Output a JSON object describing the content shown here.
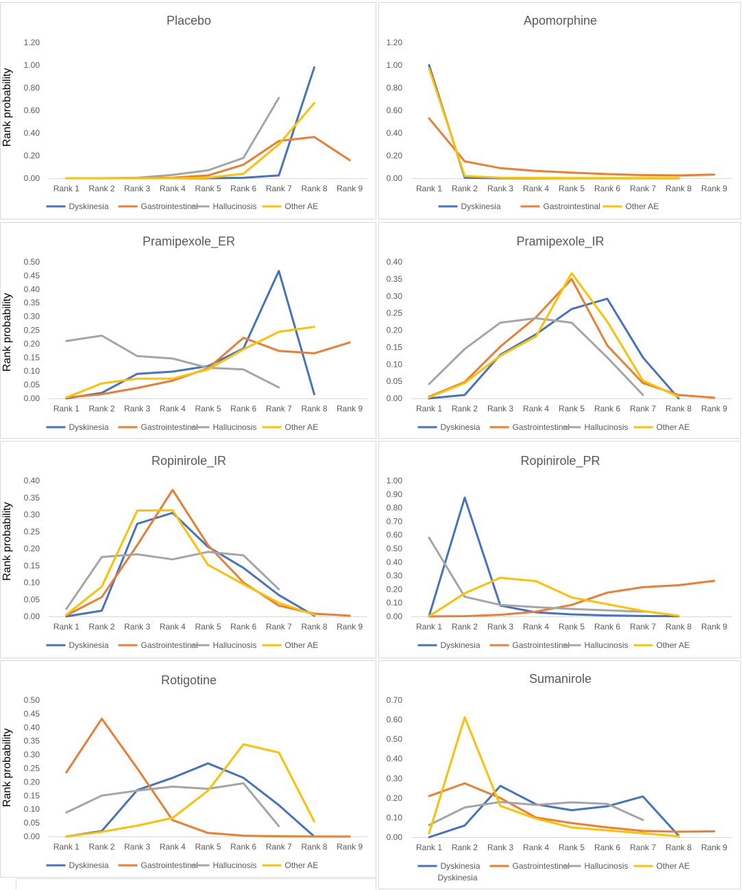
{
  "y_axis_label": "Rank probability",
  "legend_colors": {
    "Dyskinesia": "#4472C4",
    "Gastrointestinal": "#ED7D31",
    "Hallucinosis": "#A5A5A5",
    "Other AE": "#FFC000"
  },
  "chart_data": [
    {
      "type": "line",
      "title": "Placebo",
      "categories": [
        "Rank 1",
        "Rank 2",
        "Rank 3",
        "Rank 4",
        "Rank 5",
        "Rank 6",
        "Rank 7",
        "Rank 8",
        "Rank 9"
      ],
      "ylim": [
        0,
        1.2
      ],
      "yticks": [
        "0.00",
        "0.20",
        "0.40",
        "0.60",
        "0.80",
        "1.00",
        "1.20"
      ],
      "legend": [
        "Dyskinesia",
        "Gastrointestinal",
        "Hallucinosis",
        "Other AE"
      ],
      "series": [
        {
          "name": "Dyskinesia",
          "values": [
            0,
            0,
            0,
            0,
            0,
            0.005,
            0.025,
            0.98,
            null
          ]
        },
        {
          "name": "Gastrointestinal",
          "values": [
            0,
            0,
            0,
            0.005,
            0.025,
            0.12,
            0.33,
            0.365,
            0.16
          ]
        },
        {
          "name": "Hallucinosis",
          "values": [
            0,
            0,
            0.005,
            0.03,
            0.07,
            0.18,
            0.71,
            null,
            null
          ]
        },
        {
          "name": "Other AE",
          "values": [
            0,
            0,
            0,
            0,
            0.005,
            0.04,
            0.3,
            0.665,
            null
          ]
        }
      ]
    },
    {
      "type": "line",
      "title": "Apomorphine",
      "categories": [
        "Rank 1",
        "Rank 2",
        "Rank 3",
        "Rank 4",
        "Rank 5",
        "Rank 6",
        "Rank 7",
        "Rank 8",
        "Rank 9"
      ],
      "ylim": [
        0,
        1.2
      ],
      "yticks": [
        "0.00",
        "0.20",
        "0.40",
        "0.60",
        "0.80",
        "1.00",
        "1.20"
      ],
      "legend": [
        "Dyskinesia",
        "Gastrointestinal",
        "Other AE"
      ],
      "series": [
        {
          "name": "Dyskinesia",
          "values": [
            1.0,
            0.005,
            0,
            0,
            0,
            0,
            0,
            0,
            null
          ]
        },
        {
          "name": "Gastrointestinal",
          "values": [
            0.53,
            0.15,
            0.09,
            0.065,
            0.05,
            0.037,
            0.028,
            0.025,
            0.033
          ]
        },
        {
          "name": "Other AE",
          "values": [
            0.97,
            0.02,
            0.005,
            0.003,
            0.002,
            0.002,
            0.002,
            0.002,
            null
          ]
        }
      ]
    },
    {
      "type": "line",
      "title": "Pramipexole_ER",
      "categories": [
        "Rank 1",
        "Rank 2",
        "Rank 3",
        "Rank 4",
        "Rank 5",
        "Rank 6",
        "Rank 7",
        "Rank 8",
        "Rank 9"
      ],
      "ylim": [
        0,
        0.5
      ],
      "yticks": [
        "0.00",
        "0.05",
        "0.10",
        "0.15",
        "0.20",
        "0.25",
        "0.30",
        "0.35",
        "0.40",
        "0.45",
        "0.50"
      ],
      "legend": [
        "Dyskinesia",
        "Gastrointestinal",
        "Hallucinosis",
        "Other AE"
      ],
      "series": [
        {
          "name": "Dyskinesia",
          "values": [
            0,
            0.02,
            0.09,
            0.098,
            0.118,
            0.183,
            0.467,
            0.015,
            null
          ]
        },
        {
          "name": "Gastrointestinal",
          "values": [
            0.003,
            0.015,
            0.038,
            0.065,
            0.11,
            0.222,
            0.174,
            0.165,
            0.205
          ]
        },
        {
          "name": "Hallucinosis",
          "values": [
            0.21,
            0.23,
            0.155,
            0.146,
            0.112,
            0.106,
            0.04,
            null,
            null
          ]
        },
        {
          "name": "Other AE",
          "values": [
            0.003,
            0.055,
            0.072,
            0.072,
            0.106,
            0.18,
            0.244,
            0.262,
            null
          ]
        }
      ]
    },
    {
      "type": "line",
      "title": "Pramipexole_IR",
      "categories": [
        "Rank 1",
        "Rank 2",
        "Rank 3",
        "Rank 4",
        "Rank 5",
        "Rank 6",
        "Rank 7",
        "Rank 8",
        "Rank 9"
      ],
      "ylim": [
        0,
        0.4
      ],
      "yticks": [
        "0.00",
        "0.05",
        "0.10",
        "0.15",
        "0.20",
        "0.25",
        "0.30",
        "0.35",
        "0.40"
      ],
      "legend": [
        "Dyskinesia",
        "Gastrointestinal",
        "Hallucinosis",
        "Other AE"
      ],
      "series": [
        {
          "name": "Dyskinesia",
          "values": [
            0,
            0.01,
            0.128,
            0.188,
            0.262,
            0.292,
            0.12,
            0,
            null
          ]
        },
        {
          "name": "Gastrointestinal",
          "values": [
            0.005,
            0.048,
            0.152,
            0.238,
            0.35,
            0.155,
            0.045,
            0.01,
            0.002
          ]
        },
        {
          "name": "Hallucinosis",
          "values": [
            0.042,
            0.145,
            0.222,
            0.235,
            0.222,
            0.12,
            0.01,
            null,
            null
          ]
        },
        {
          "name": "Other AE",
          "values": [
            0.003,
            0.045,
            0.125,
            0.182,
            0.367,
            0.225,
            0.052,
            0.005,
            null
          ]
        }
      ]
    },
    {
      "type": "line",
      "title": "Ropinirole_IR",
      "categories": [
        "Rank 1",
        "Rank 2",
        "Rank 3",
        "Rank 4",
        "Rank 5",
        "Rank 6",
        "Rank 7",
        "Rank 8",
        "Rank 9"
      ],
      "ylim": [
        0,
        0.4
      ],
      "yticks": [
        "0.00",
        "0.05",
        "0.10",
        "0.15",
        "0.20",
        "0.25",
        "0.30",
        "0.35",
        "0.40"
      ],
      "legend": [
        "Dyskinesia",
        "Gastrointestinal",
        "Hallucinosis",
        "Other AE"
      ],
      "series": [
        {
          "name": "Dyskinesia",
          "values": [
            0,
            0.017,
            0.273,
            0.305,
            0.205,
            0.143,
            0.063,
            0.002,
            null
          ]
        },
        {
          "name": "Gastrointestinal",
          "values": [
            0.003,
            0.057,
            0.21,
            0.373,
            0.21,
            0.1,
            0.032,
            0.008,
            0.002
          ]
        },
        {
          "name": "Hallucinosis",
          "values": [
            0.022,
            0.175,
            0.183,
            0.168,
            0.19,
            0.18,
            0.08,
            null,
            null
          ]
        },
        {
          "name": "Other AE",
          "values": [
            0.005,
            0.088,
            0.312,
            0.313,
            0.152,
            0.095,
            0.04,
            0.005,
            null
          ]
        }
      ]
    },
    {
      "type": "line",
      "title": "Ropinirole_PR",
      "categories": [
        "Rank 1",
        "Rank 2",
        "Rank 3",
        "Rank 4",
        "Rank 5",
        "Rank 6",
        "Rank 7",
        "Rank 8",
        "Rank 9"
      ],
      "ylim": [
        0,
        1.0
      ],
      "yticks": [
        "0.00",
        "0.10",
        "0.20",
        "0.30",
        "0.40",
        "0.50",
        "0.60",
        "0.70",
        "0.80",
        "0.90",
        "1.00"
      ],
      "legend": [
        "Dyskinesia",
        "Gastrointestinal",
        "Hallucinosis",
        "Other AE"
      ],
      "series": [
        {
          "name": "Dyskinesia",
          "values": [
            0.003,
            0.875,
            0.08,
            0.03,
            0.015,
            0.007,
            0.003,
            0.001,
            null
          ]
        },
        {
          "name": "Gastrointestinal",
          "values": [
            0,
            0.002,
            0.012,
            0.035,
            0.085,
            0.175,
            0.215,
            0.23,
            0.262
          ]
        },
        {
          "name": "Hallucinosis",
          "values": [
            0.58,
            0.145,
            0.085,
            0.068,
            0.055,
            0.045,
            0.035,
            null,
            null
          ]
        },
        {
          "name": "Other AE",
          "values": [
            0.002,
            0.17,
            0.285,
            0.26,
            0.14,
            0.09,
            0.04,
            0.005,
            null
          ]
        }
      ]
    },
    {
      "type": "line",
      "title": "Rotigotine",
      "categories": [
        "Rank 1",
        "Rank 2",
        "Rank 3",
        "Rank 4",
        "Rank 5",
        "Rank 6",
        "Rank 7",
        "Rank 8",
        "Rank 9"
      ],
      "ylim": [
        0,
        0.5
      ],
      "yticks": [
        "0.00",
        "0.05",
        "0.10",
        "0.15",
        "0.20",
        "0.25",
        "0.30",
        "0.35",
        "0.40",
        "0.45",
        "0.50"
      ],
      "legend": [
        "Dyskinesia",
        "Gastrointestinal",
        "Hallucinosis",
        "Other AE"
      ],
      "series": [
        {
          "name": "Dyskinesia",
          "values": [
            0,
            0.02,
            0.17,
            0.215,
            0.268,
            0.215,
            0.115,
            0,
            null
          ]
        },
        {
          "name": "Gastrointestinal",
          "values": [
            0.235,
            0.432,
            0.25,
            0.06,
            0.013,
            0.003,
            0.001,
            0,
            0
          ]
        },
        {
          "name": "Hallucinosis",
          "values": [
            0.088,
            0.15,
            0.168,
            0.183,
            0.175,
            0.195,
            0.038,
            null,
            null
          ]
        },
        {
          "name": "Other AE",
          "values": [
            0,
            0.017,
            0.04,
            0.068,
            0.168,
            0.338,
            0.308,
            0.055,
            null
          ]
        }
      ]
    },
    {
      "type": "line",
      "title": "Sumanirole",
      "categories": [
        "Rank 1",
        "Rank 2",
        "Rank 3",
        "Rank 4",
        "Rank 5",
        "Rank 6",
        "Rank 7",
        "Rank 8",
        "Rank 9"
      ],
      "ylim": [
        0,
        0.7
      ],
      "yticks": [
        "0.00",
        "0.10",
        "0.20",
        "0.30",
        "0.40",
        "0.50",
        "0.60",
        "0.70"
      ],
      "legend": [
        "Dyskinesia",
        "Gastrointestinal",
        "Hallucinosis",
        "Other AE"
      ],
      "legend_extra": "Dyskinesia",
      "series": [
        {
          "name": "Dyskinesia",
          "values": [
            0,
            0.06,
            0.262,
            0.168,
            0.138,
            0.158,
            0.208,
            0.008,
            null
          ]
        },
        {
          "name": "Gastrointestinal",
          "values": [
            0.21,
            0.275,
            0.2,
            0.1,
            0.072,
            0.05,
            0.032,
            0.028,
            0.03
          ]
        },
        {
          "name": "Hallucinosis",
          "values": [
            0.062,
            0.152,
            0.18,
            0.165,
            0.178,
            0.17,
            0.088,
            null,
            null
          ]
        },
        {
          "name": "Other AE",
          "values": [
            0.02,
            0.612,
            0.16,
            0.095,
            0.05,
            0.035,
            0.02,
            0.005,
            null
          ]
        }
      ]
    }
  ]
}
